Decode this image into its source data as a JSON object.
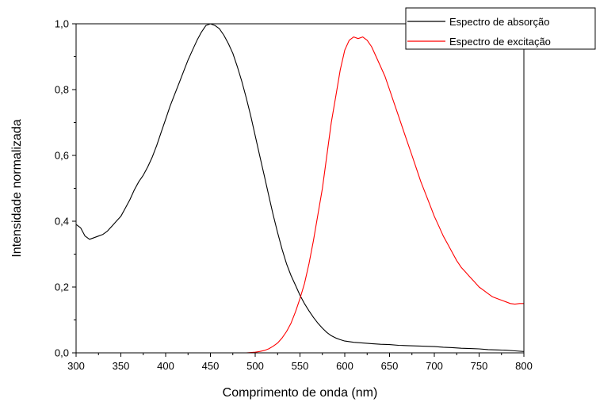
{
  "chart_data": {
    "type": "line",
    "title": "",
    "xlabel": "Comprimento de onda (nm)",
    "ylabel": "Intensidade normalizada",
    "xlim": [
      300,
      800
    ],
    "ylim": [
      0,
      1
    ],
    "x_ticks": [
      300,
      350,
      400,
      450,
      500,
      550,
      600,
      650,
      700,
      750,
      800
    ],
    "x_tick_labels": [
      "300",
      "350",
      "400",
      "450",
      "500",
      "550",
      "600",
      "650",
      "700",
      "750",
      "800"
    ],
    "y_ticks": [
      0,
      0.2,
      0.4,
      0.6,
      0.8,
      1.0
    ],
    "y_tick_labels": [
      "0,0",
      "0,2",
      "0,4",
      "0,6",
      "0,8",
      "1,0"
    ],
    "grid": false,
    "legend_position": "top-right",
    "series": [
      {
        "name": "Espectro de absorção",
        "color": "#000000",
        "points": [
          [
            300,
            0.39
          ],
          [
            305,
            0.38
          ],
          [
            310,
            0.355
          ],
          [
            315,
            0.345
          ],
          [
            320,
            0.35
          ],
          [
            325,
            0.355
          ],
          [
            330,
            0.36
          ],
          [
            335,
            0.37
          ],
          [
            340,
            0.385
          ],
          [
            345,
            0.4
          ],
          [
            350,
            0.415
          ],
          [
            355,
            0.44
          ],
          [
            360,
            0.465
          ],
          [
            365,
            0.495
          ],
          [
            370,
            0.52
          ],
          [
            375,
            0.54
          ],
          [
            380,
            0.565
          ],
          [
            385,
            0.595
          ],
          [
            390,
            0.63
          ],
          [
            395,
            0.67
          ],
          [
            400,
            0.71
          ],
          [
            405,
            0.75
          ],
          [
            410,
            0.785
          ],
          [
            415,
            0.82
          ],
          [
            420,
            0.855
          ],
          [
            425,
            0.89
          ],
          [
            430,
            0.92
          ],
          [
            435,
            0.95
          ],
          [
            440,
            0.975
          ],
          [
            445,
            0.995
          ],
          [
            450,
            1.0
          ],
          [
            455,
            0.995
          ],
          [
            460,
            0.985
          ],
          [
            465,
            0.965
          ],
          [
            470,
            0.94
          ],
          [
            475,
            0.91
          ],
          [
            480,
            0.87
          ],
          [
            485,
            0.825
          ],
          [
            490,
            0.775
          ],
          [
            495,
            0.72
          ],
          [
            500,
            0.66
          ],
          [
            505,
            0.6
          ],
          [
            510,
            0.54
          ],
          [
            515,
            0.48
          ],
          [
            520,
            0.42
          ],
          [
            525,
            0.365
          ],
          [
            530,
            0.315
          ],
          [
            535,
            0.27
          ],
          [
            540,
            0.235
          ],
          [
            545,
            0.205
          ],
          [
            550,
            0.175
          ],
          [
            555,
            0.15
          ],
          [
            560,
            0.128
          ],
          [
            565,
            0.108
          ],
          [
            570,
            0.09
          ],
          [
            575,
            0.075
          ],
          [
            580,
            0.062
          ],
          [
            585,
            0.052
          ],
          [
            590,
            0.045
          ],
          [
            595,
            0.04
          ],
          [
            600,
            0.036
          ],
          [
            610,
            0.032
          ],
          [
            620,
            0.03
          ],
          [
            630,
            0.028
          ],
          [
            640,
            0.026
          ],
          [
            650,
            0.025
          ],
          [
            660,
            0.023
          ],
          [
            670,
            0.022
          ],
          [
            680,
            0.021
          ],
          [
            690,
            0.02
          ],
          [
            700,
            0.019
          ],
          [
            710,
            0.017
          ],
          [
            720,
            0.016
          ],
          [
            730,
            0.014
          ],
          [
            740,
            0.013
          ],
          [
            750,
            0.012
          ],
          [
            760,
            0.01
          ],
          [
            770,
            0.009
          ],
          [
            780,
            0.008
          ],
          [
            790,
            0.006
          ],
          [
            800,
            0.004
          ]
        ]
      },
      {
        "name": "Espectro de excitação",
        "color": "#ff0000",
        "points": [
          [
            450,
            0.0
          ],
          [
            470,
            0.0
          ],
          [
            490,
            0.0
          ],
          [
            500,
            0.002
          ],
          [
            505,
            0.004
          ],
          [
            510,
            0.007
          ],
          [
            515,
            0.012
          ],
          [
            520,
            0.02
          ],
          [
            525,
            0.03
          ],
          [
            530,
            0.045
          ],
          [
            535,
            0.065
          ],
          [
            540,
            0.09
          ],
          [
            545,
            0.125
          ],
          [
            550,
            0.165
          ],
          [
            555,
            0.21
          ],
          [
            560,
            0.27
          ],
          [
            565,
            0.34
          ],
          [
            570,
            0.42
          ],
          [
            575,
            0.5
          ],
          [
            580,
            0.6
          ],
          [
            585,
            0.7
          ],
          [
            590,
            0.78
          ],
          [
            595,
            0.86
          ],
          [
            600,
            0.92
          ],
          [
            605,
            0.95
          ],
          [
            610,
            0.96
          ],
          [
            615,
            0.955
          ],
          [
            620,
            0.96
          ],
          [
            625,
            0.95
          ],
          [
            630,
            0.93
          ],
          [
            635,
            0.9
          ],
          [
            640,
            0.87
          ],
          [
            645,
            0.84
          ],
          [
            650,
            0.8
          ],
          [
            655,
            0.76
          ],
          [
            660,
            0.72
          ],
          [
            665,
            0.68
          ],
          [
            670,
            0.64
          ],
          [
            675,
            0.6
          ],
          [
            680,
            0.56
          ],
          [
            685,
            0.52
          ],
          [
            690,
            0.485
          ],
          [
            695,
            0.45
          ],
          [
            700,
            0.415
          ],
          [
            705,
            0.385
          ],
          [
            710,
            0.355
          ],
          [
            715,
            0.33
          ],
          [
            720,
            0.305
          ],
          [
            725,
            0.28
          ],
          [
            730,
            0.26
          ],
          [
            735,
            0.245
          ],
          [
            740,
            0.23
          ],
          [
            745,
            0.215
          ],
          [
            750,
            0.2
          ],
          [
            755,
            0.19
          ],
          [
            760,
            0.18
          ],
          [
            765,
            0.17
          ],
          [
            770,
            0.165
          ],
          [
            775,
            0.16
          ],
          [
            780,
            0.155
          ],
          [
            785,
            0.15
          ],
          [
            790,
            0.148
          ],
          [
            795,
            0.15
          ],
          [
            800,
            0.15
          ]
        ]
      }
    ]
  }
}
